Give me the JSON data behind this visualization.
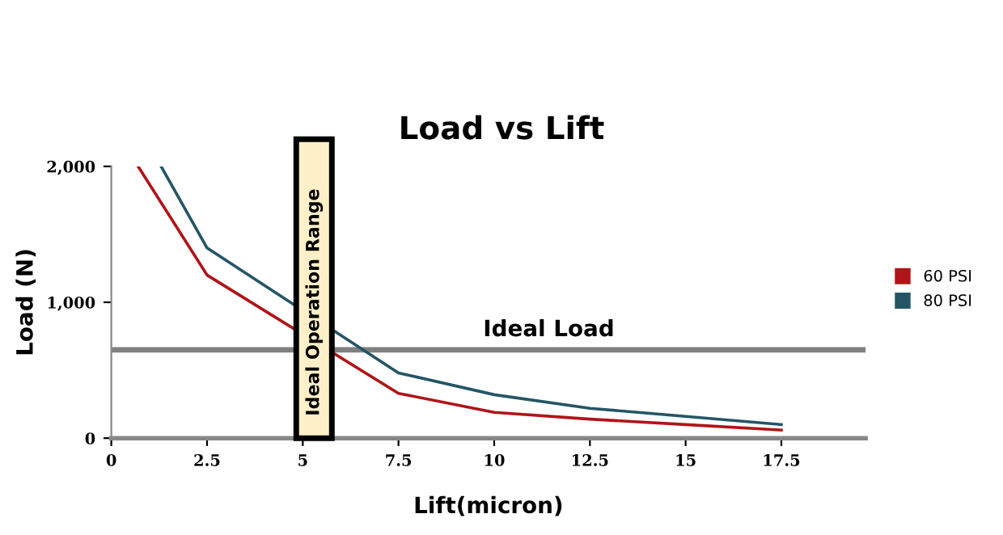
{
  "chart_data": {
    "type": "line",
    "title": "Load vs Lift",
    "xlabel": "Lift(micron)",
    "ylabel": "Load (N)",
    "series": [
      {
        "name": "60 PSI",
        "color": "#b01419",
        "x": [
          0.7,
          2.5,
          5,
          7.5,
          10,
          12.5,
          15,
          17.5
        ],
        "values": [
          2000,
          1200,
          null,
          330,
          190,
          140,
          100,
          60
        ]
      },
      {
        "name": "80 PSI",
        "color": "#245566",
        "x": [
          1.3,
          2.5,
          5,
          7.5,
          10,
          12.5,
          15,
          17.5
        ],
        "values": [
          2000,
          1400,
          null,
          480,
          320,
          220,
          160,
          100
        ]
      }
    ],
    "xlim": [
      0,
      19.7
    ],
    "xticks": [
      0,
      2.5,
      5,
      7.5,
      10,
      12.5,
      15,
      17.5
    ],
    "ylim": [
      0,
      2000
    ],
    "yticks": [
      {
        "value": 0,
        "label": "0"
      },
      {
        "value": 1000,
        "label": "1,000"
      },
      {
        "value": 2000,
        "label": "2,000"
      }
    ],
    "ref_lines": [
      {
        "axis": "y",
        "value": 650,
        "label": "Ideal Load",
        "color": "#808080"
      }
    ],
    "bands": [
      {
        "axis": "x",
        "from": 4.83,
        "to": 5.76,
        "label": "Ideal Operation Range",
        "color": "#fdf0c8"
      }
    ],
    "grid": false,
    "legend": "right",
    "marker": "none",
    "line_style": "solid"
  }
}
